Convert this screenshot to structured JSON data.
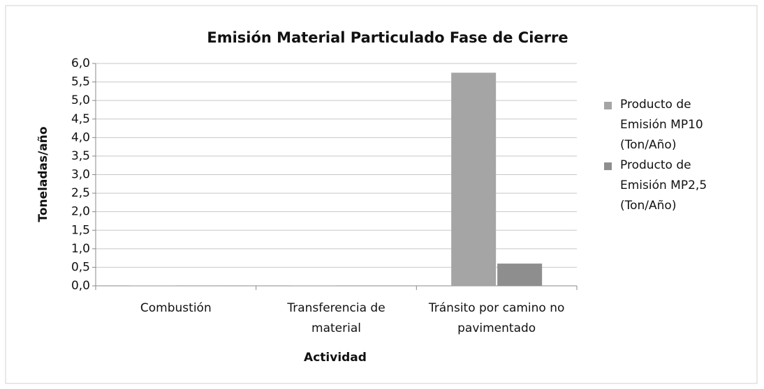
{
  "chart_data": {
    "type": "bar",
    "title": "Emisión Material Particulado Fase de Cierre",
    "x_label": "Actividad",
    "y_label": "Toneladas/año",
    "categories": [
      "Combustión",
      "Transferencia de material",
      "Tránsito por camino no pavimentado"
    ],
    "series": [
      {
        "name": "Producto de Emisión MP10 (Ton/Año)",
        "color": "#a5a5a5",
        "values": [
          0.01,
          0.005,
          5.75
        ]
      },
      {
        "name": "Producto de Emisión MP2,5 (Ton/Año)",
        "color": "#8e8e8e",
        "values": [
          0.005,
          0.002,
          0.6
        ]
      }
    ],
    "ylim": [
      0,
      6
    ],
    "yticks": [
      {
        "value": 0,
        "label": "0,0"
      },
      {
        "value": 0.5,
        "label": "0,5"
      },
      {
        "value": 1,
        "label": "1,0"
      },
      {
        "value": 1.5,
        "label": "1,5"
      },
      {
        "value": 2,
        "label": "2,0"
      },
      {
        "value": 2.5,
        "label": "2,5"
      },
      {
        "value": 3,
        "label": "3,0"
      },
      {
        "value": 3.5,
        "label": "3,5"
      },
      {
        "value": 4,
        "label": "4,0"
      },
      {
        "value": 4.5,
        "label": "4,5"
      },
      {
        "value": 5,
        "label": "5,0"
      },
      {
        "value": 5.5,
        "label": "5,5"
      },
      {
        "value": 6,
        "label": "6,0"
      }
    ],
    "grid": true,
    "legend": "right"
  }
}
